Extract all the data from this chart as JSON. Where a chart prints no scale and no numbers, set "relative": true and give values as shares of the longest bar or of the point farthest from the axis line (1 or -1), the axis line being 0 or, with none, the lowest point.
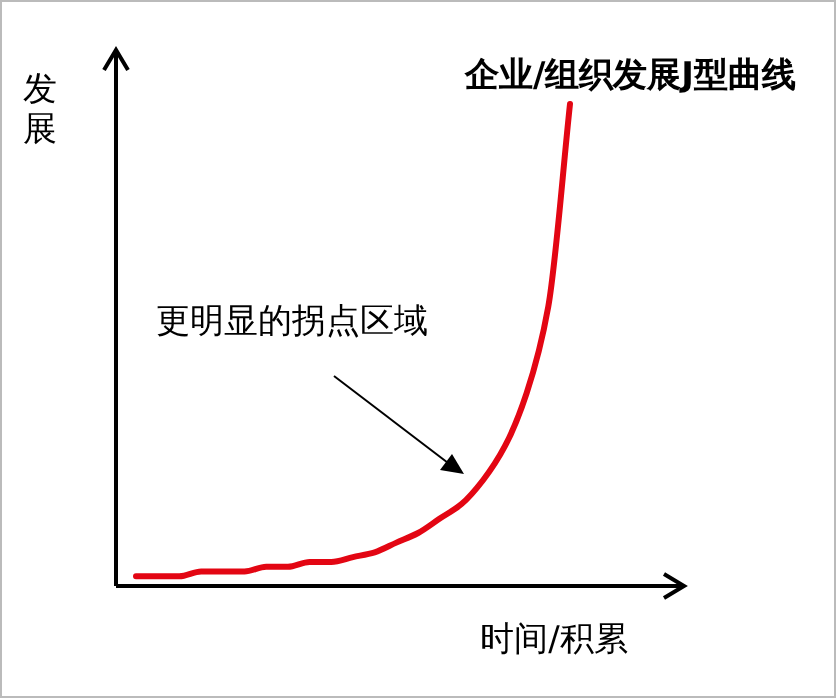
{
  "chart_data": {
    "type": "line",
    "relative": true,
    "title": "企业/组织发展J型曲线",
    "xlabel": "时间/积累",
    "ylabel": "发展",
    "color": "#e30613",
    "categories": [
      null,
      null,
      null,
      null,
      null,
      null,
      null,
      null,
      null,
      null,
      null,
      null,
      null,
      null,
      null,
      null,
      null,
      null,
      null,
      null,
      null
    ],
    "values": [
      0.02,
      0.02,
      0.02,
      0.03,
      0.03,
      0.03,
      0.04,
      0.04,
      0.05,
      0.05,
      0.06,
      0.07,
      0.09,
      0.11,
      0.14,
      0.17,
      0.22,
      0.29,
      0.4,
      0.58,
      1
    ],
    "annotations": [
      "更明显的拐点区域"
    ]
  }
}
